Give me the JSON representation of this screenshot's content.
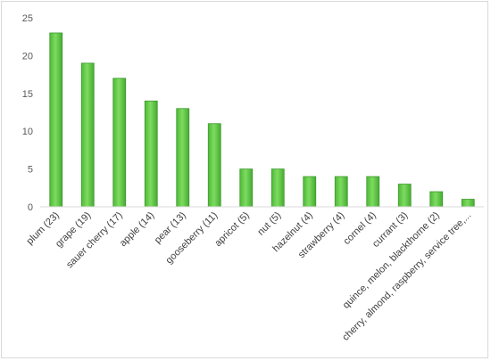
{
  "chart_data": {
    "type": "bar",
    "title": "",
    "xlabel": "",
    "ylabel": "",
    "ylim": [
      0,
      25
    ],
    "yticks": [
      0,
      5,
      10,
      15,
      20,
      25
    ],
    "grid": false,
    "bar_color": "#5cc644",
    "bar_edge_color": "#3f9a2e",
    "categories": [
      "plum (23)",
      "grape (19)",
      "sauer cherry (17)",
      "apple (14)",
      "pear (13)",
      "gooseberry (11)",
      "apricot (5)",
      "nut (5)",
      "hazelnut (4)",
      "strawberry (4)",
      "cornel (4)",
      "currant (3)",
      "quince, melon, blackthorne (2)",
      "cherry, almond, raspberry, service tree,..."
    ],
    "values": [
      23,
      19,
      17,
      14,
      13,
      11,
      5,
      5,
      4,
      4,
      4,
      3,
      2,
      1
    ]
  }
}
